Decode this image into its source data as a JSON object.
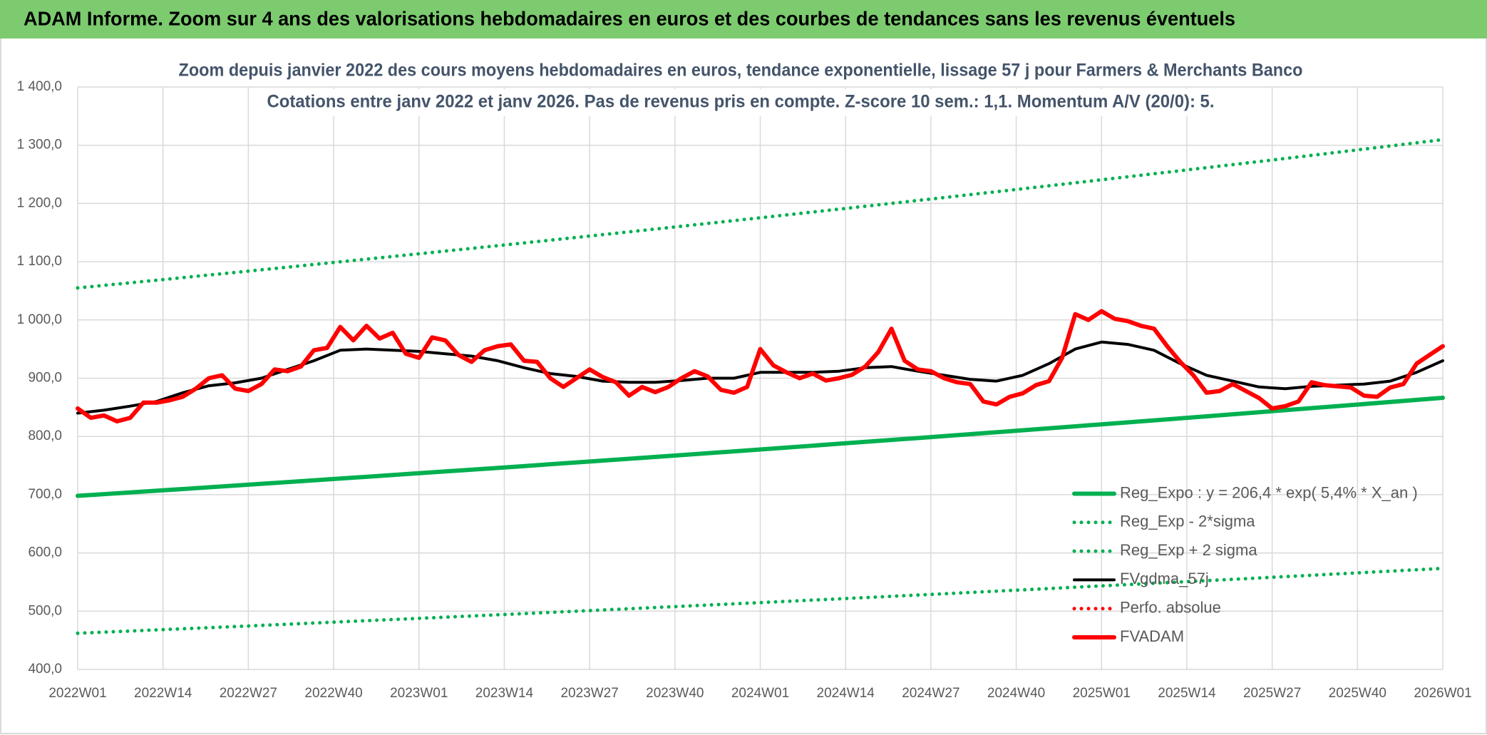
{
  "header": {
    "title": "ADAM Informe. Zoom sur 4 ans des valorisations hebdomadaires en euros et des courbes de tendances sans les revenus éventuels"
  },
  "chart_data": {
    "type": "line",
    "title": "Zoom depuis janvier 2022 des cours moyens hebdomadaires en euros, tendance exponentielle, lissage 57 j pour Farmers & Merchants Banco",
    "subtitle": "Cotations entre janv 2022 et janv 2026. Pas de revenus pris en compte. Z-score 10 sem.: 1,1. Momentum A/V (20/0): 5.",
    "xlim": [
      0,
      208
    ],
    "xticks": [
      {
        "value": 0,
        "label": "2022W01"
      },
      {
        "value": 13,
        "label": "2022W14"
      },
      {
        "value": 26,
        "label": "2022W27"
      },
      {
        "value": 39,
        "label": "2022W40"
      },
      {
        "value": 52,
        "label": "2023W01"
      },
      {
        "value": 65,
        "label": "2023W14"
      },
      {
        "value": 78,
        "label": "2023W27"
      },
      {
        "value": 91,
        "label": "2023W40"
      },
      {
        "value": 104,
        "label": "2024W01"
      },
      {
        "value": 117,
        "label": "2024W14"
      },
      {
        "value": 130,
        "label": "2024W27"
      },
      {
        "value": 143,
        "label": "2024W40"
      },
      {
        "value": 156,
        "label": "2025W01"
      },
      {
        "value": 169,
        "label": "2025W14"
      },
      {
        "value": 182,
        "label": "2025W27"
      },
      {
        "value": 195,
        "label": "2025W40"
      },
      {
        "value": 208,
        "label": "2026W01"
      }
    ],
    "ylim": [
      400,
      1400
    ],
    "yticks": [
      {
        "value": 400,
        "label": "400,0"
      },
      {
        "value": 500,
        "label": "500,0"
      },
      {
        "value": 600,
        "label": "600,0"
      },
      {
        "value": 700,
        "label": "700,0"
      },
      {
        "value": 800,
        "label": "800,0"
      },
      {
        "value": 900,
        "label": "900,0"
      },
      {
        "value": 1000,
        "label": "1 000,0"
      },
      {
        "value": 1100,
        "label": "1 100,0"
      },
      {
        "value": 1200,
        "label": "1 200,0"
      },
      {
        "value": 1300,
        "label": "1 300,0"
      },
      {
        "value": 1400,
        "label": "1 400,0"
      }
    ],
    "grid": true,
    "legend": "lower right",
    "series": [
      {
        "name": "Reg_Expo : y = 206,4 * exp( 5,4% *  X_an )",
        "color": "#00b050",
        "style": "solid",
        "x": [
          0,
          13,
          26,
          39,
          52,
          65,
          78,
          91,
          104,
          117,
          130,
          143,
          156,
          169,
          182,
          195,
          208
        ],
        "values": [
          698.0,
          707.5,
          717.1,
          726.9,
          736.8,
          746.8,
          756.9,
          767.2,
          777.6,
          788.2,
          798.9,
          809.8,
          820.8,
          832.0,
          843.3,
          854.7,
          866.4
        ]
      },
      {
        "name": "Reg_Exp - 2*sigma",
        "color": "#00b050",
        "style": "dotted",
        "x": [
          0,
          13,
          26,
          39,
          52,
          65,
          78,
          91,
          104,
          117,
          130,
          143,
          156,
          169,
          182,
          195,
          208
        ],
        "values": [
          462.0,
          468.3,
          474.6,
          481.1,
          487.6,
          494.3,
          501.0,
          507.8,
          514.7,
          521.7,
          528.8,
          536.0,
          543.3,
          550.7,
          558.1,
          565.7,
          573.4
        ]
      },
      {
        "name": "Reg_Exp + 2 sigma",
        "color": "#00b050",
        "style": "dotted",
        "x": [
          0,
          13,
          26,
          39,
          52,
          65,
          78,
          91,
          104,
          117,
          130,
          143,
          156,
          169,
          182,
          195,
          208
        ],
        "values": [
          1055.0,
          1069.3,
          1083.9,
          1098.6,
          1113.6,
          1128.7,
          1144.1,
          1159.6,
          1175.4,
          1191.4,
          1207.6,
          1224.0,
          1240.6,
          1257.5,
          1274.6,
          1291.9,
          1309.5
        ]
      },
      {
        "name": "FVgdma_57j",
        "color": "#000000",
        "style": "solid",
        "x": [
          0,
          4,
          8,
          12,
          16,
          20,
          24,
          28,
          32,
          36,
          40,
          44,
          48,
          52,
          56,
          60,
          64,
          68,
          72,
          76,
          80,
          84,
          88,
          92,
          96,
          100,
          104,
          108,
          112,
          116,
          120,
          124,
          128,
          132,
          136,
          140,
          144,
          148,
          152,
          156,
          160,
          164,
          168,
          172,
          176,
          180,
          184,
          188,
          192,
          196,
          200,
          204,
          208
        ],
        "values": [
          840,
          845,
          852,
          860,
          875,
          887,
          892,
          900,
          915,
          930,
          948,
          950,
          948,
          946,
          942,
          938,
          930,
          918,
          908,
          903,
          895,
          893,
          893,
          896,
          900,
          900,
          910,
          910,
          910,
          912,
          918,
          920,
          912,
          905,
          898,
          895,
          905,
          925,
          950,
          962,
          958,
          948,
          925,
          905,
          895,
          885,
          882,
          886,
          888,
          890,
          895,
          910,
          930
        ]
      },
      {
        "name": "Perfo. absolue",
        "color": "#ff0000",
        "style": "dotted",
        "x": [],
        "values": []
      },
      {
        "name": "FVADAM",
        "color": "#ff0000",
        "style": "solid",
        "x": [
          0,
          2,
          4,
          6,
          8,
          10,
          12,
          14,
          16,
          18,
          20,
          22,
          24,
          26,
          28,
          30,
          32,
          34,
          36,
          38,
          40,
          42,
          44,
          46,
          48,
          50,
          52,
          54,
          56,
          58,
          60,
          62,
          64,
          66,
          68,
          70,
          72,
          74,
          76,
          78,
          80,
          82,
          84,
          86,
          88,
          90,
          92,
          94,
          96,
          98,
          100,
          102,
          104,
          106,
          108,
          110,
          112,
          114,
          116,
          118,
          120,
          122,
          124,
          126,
          128,
          130,
          132,
          134,
          136,
          138,
          140,
          142,
          144,
          146,
          148,
          150,
          152,
          154,
          156,
          158,
          160,
          162,
          164,
          166,
          168,
          170,
          172,
          174,
          176,
          178,
          180,
          182,
          184,
          186,
          188,
          190,
          192,
          194,
          196,
          198,
          200,
          202,
          204,
          206,
          208
        ],
        "values": [
          848,
          832,
          836,
          826,
          832,
          858,
          858,
          862,
          868,
          882,
          900,
          905,
          882,
          878,
          890,
          915,
          912,
          920,
          948,
          952,
          988,
          965,
          990,
          968,
          978,
          942,
          935,
          970,
          965,
          940,
          928,
          948,
          955,
          958,
          930,
          928,
          900,
          885,
          900,
          915,
          902,
          893,
          870,
          885,
          876,
          885,
          900,
          912,
          903,
          880,
          875,
          885,
          950,
          922,
          910,
          900,
          908,
          896,
          900,
          906,
          920,
          945,
          985,
          930,
          915,
          912,
          900,
          893,
          890,
          860,
          855,
          868,
          874,
          888,
          895,
          935,
          1010,
          1000,
          1015,
          1002,
          998,
          990,
          985,
          955,
          928,
          905,
          875,
          878,
          890,
          878,
          866,
          848,
          852,
          860,
          893,
          888,
          886,
          884,
          870,
          868,
          884,
          890,
          925,
          940,
          955
        ]
      }
    ]
  }
}
